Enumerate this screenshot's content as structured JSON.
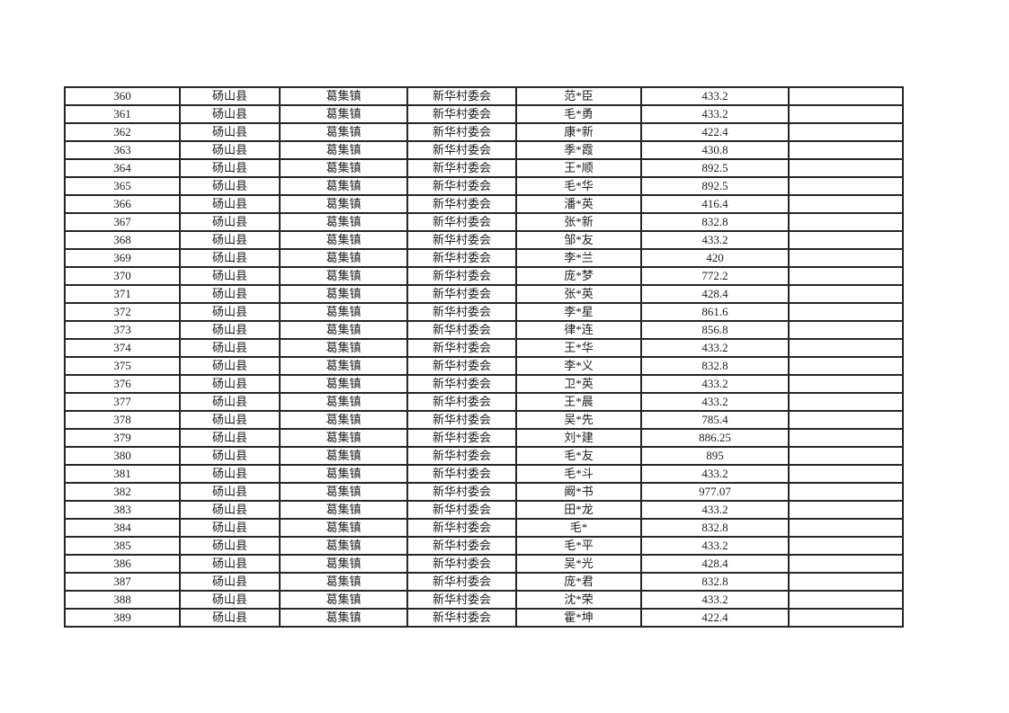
{
  "colors": {
    "page_background": "#ffffff",
    "table_border": "#262626",
    "text": "#1f1f1f"
  },
  "table": {
    "column_keys": [
      "seq",
      "county",
      "town",
      "village",
      "person-name",
      "amount",
      "note"
    ],
    "rows": [
      [
        "360",
        "砀山县",
        "葛集镇",
        "新华村委会",
        "范*臣",
        "433.2",
        ""
      ],
      [
        "361",
        "砀山县",
        "葛集镇",
        "新华村委会",
        "毛*勇",
        "433.2",
        ""
      ],
      [
        "362",
        "砀山县",
        "葛集镇",
        "新华村委会",
        "康*新",
        "422.4",
        ""
      ],
      [
        "363",
        "砀山县",
        "葛集镇",
        "新华村委会",
        "季*霞",
        "430.8",
        ""
      ],
      [
        "364",
        "砀山县",
        "葛集镇",
        "新华村委会",
        "王*顺",
        "892.5",
        ""
      ],
      [
        "365",
        "砀山县",
        "葛集镇",
        "新华村委会",
        "毛*华",
        "892.5",
        ""
      ],
      [
        "366",
        "砀山县",
        "葛集镇",
        "新华村委会",
        "潘*英",
        "416.4",
        ""
      ],
      [
        "367",
        "砀山县",
        "葛集镇",
        "新华村委会",
        "张*新",
        "832.8",
        ""
      ],
      [
        "368",
        "砀山县",
        "葛集镇",
        "新华村委会",
        "邹*友",
        "433.2",
        ""
      ],
      [
        "369",
        "砀山县",
        "葛集镇",
        "新华村委会",
        "李*兰",
        "420",
        ""
      ],
      [
        "370",
        "砀山县",
        "葛集镇",
        "新华村委会",
        "庞*梦",
        "772.2",
        ""
      ],
      [
        "371",
        "砀山县",
        "葛集镇",
        "新华村委会",
        "张*英",
        "428.4",
        ""
      ],
      [
        "372",
        "砀山县",
        "葛集镇",
        "新华村委会",
        "李*星",
        "861.6",
        ""
      ],
      [
        "373",
        "砀山县",
        "葛集镇",
        "新华村委会",
        "律*连",
        "856.8",
        ""
      ],
      [
        "374",
        "砀山县",
        "葛集镇",
        "新华村委会",
        "王*华",
        "433.2",
        ""
      ],
      [
        "375",
        "砀山县",
        "葛集镇",
        "新华村委会",
        "李*义",
        "832.8",
        ""
      ],
      [
        "376",
        "砀山县",
        "葛集镇",
        "新华村委会",
        "卫*英",
        "433.2",
        ""
      ],
      [
        "377",
        "砀山县",
        "葛集镇",
        "新华村委会",
        "王*晨",
        "433.2",
        ""
      ],
      [
        "378",
        "砀山县",
        "葛集镇",
        "新华村委会",
        "吴*先",
        "785.4",
        ""
      ],
      [
        "379",
        "砀山县",
        "葛集镇",
        "新华村委会",
        "刘*建",
        "886.25",
        ""
      ],
      [
        "380",
        "砀山县",
        "葛集镇",
        "新华村委会",
        "毛*友",
        "895",
        ""
      ],
      [
        "381",
        "砀山县",
        "葛集镇",
        "新华村委会",
        "毛*斗",
        "433.2",
        ""
      ],
      [
        "382",
        "砀山县",
        "葛集镇",
        "新华村委会",
        "阚*书",
        "977.07",
        ""
      ],
      [
        "383",
        "砀山县",
        "葛集镇",
        "新华村委会",
        "田*龙",
        "433.2",
        ""
      ],
      [
        "384",
        "砀山县",
        "葛集镇",
        "新华村委会",
        "毛*",
        "832.8",
        ""
      ],
      [
        "385",
        "砀山县",
        "葛集镇",
        "新华村委会",
        "毛*平",
        "433.2",
        ""
      ],
      [
        "386",
        "砀山县",
        "葛集镇",
        "新华村委会",
        "吴*光",
        "428.4",
        ""
      ],
      [
        "387",
        "砀山县",
        "葛集镇",
        "新华村委会",
        "庞*君",
        "832.8",
        ""
      ],
      [
        "388",
        "砀山县",
        "葛集镇",
        "新华村委会",
        "沈*荣",
        "433.2",
        ""
      ],
      [
        "389",
        "砀山县",
        "葛集镇",
        "新华村委会",
        "霍*坤",
        "422.4",
        ""
      ]
    ]
  }
}
